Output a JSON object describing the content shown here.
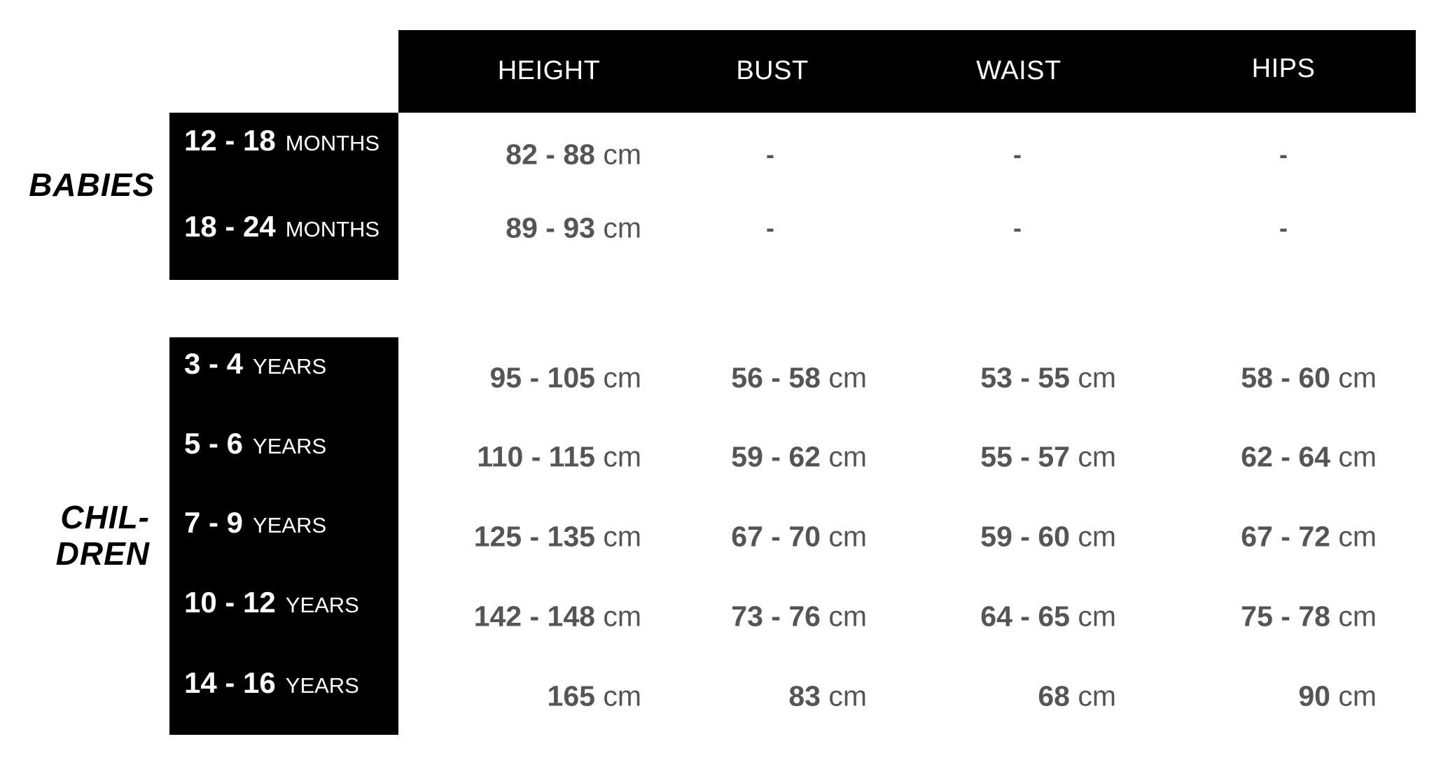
{
  "columns": [
    "HEIGHT",
    "BUST",
    "WAIST",
    "HIPS"
  ],
  "groups": {
    "babies": {
      "label": "BABIES",
      "rows": [
        {
          "range": "12 - 18",
          "unit": "MONTHS",
          "values": [
            {
              "num": "82 - 88",
              "unit": "cm"
            },
            "-",
            "-",
            "-"
          ]
        },
        {
          "range": "18 - 24",
          "unit": "MONTHS",
          "values": [
            {
              "num": "89 - 93",
              "unit": "cm"
            },
            "-",
            "-",
            "-"
          ]
        }
      ]
    },
    "children": {
      "label_line1": "CHIL-",
      "label_line2": "DREN",
      "rows": [
        {
          "range": "3 - 4",
          "unit": "YEARS",
          "values": [
            {
              "num": "95 - 105",
              "unit": "cm"
            },
            {
              "num": "56 - 58",
              "unit": "cm"
            },
            {
              "num": "53 - 55",
              "unit": "cm"
            },
            {
              "num": "58 - 60",
              "unit": "cm"
            }
          ]
        },
        {
          "range": "5 - 6",
          "unit": "YEARS",
          "values": [
            {
              "num": "110 - 115",
              "unit": "cm"
            },
            {
              "num": "59 - 62",
              "unit": "cm"
            },
            {
              "num": "55 - 57",
              "unit": "cm"
            },
            {
              "num": "62 - 64",
              "unit": "cm"
            }
          ]
        },
        {
          "range": "7 - 9",
          "unit": "YEARS",
          "values": [
            {
              "num": "125 - 135",
              "unit": "cm"
            },
            {
              "num": "67 - 70",
              "unit": "cm"
            },
            {
              "num": "59 - 60",
              "unit": "cm"
            },
            {
              "num": "67 - 72",
              "unit": "cm"
            }
          ]
        },
        {
          "range": "10 - 12",
          "unit": "YEARS",
          "values": [
            {
              "num": "142 - 148",
              "unit": "cm"
            },
            {
              "num": "73 - 76",
              "unit": "cm"
            },
            {
              "num": "64 - 65",
              "unit": "cm"
            },
            {
              "num": "75 - 78",
              "unit": "cm"
            }
          ]
        },
        {
          "range": "14 - 16",
          "unit": "YEARS",
          "values": [
            {
              "num": "165",
              "unit": "cm"
            },
            {
              "num": "83",
              "unit": "cm"
            },
            {
              "num": "68",
              "unit": "cm"
            },
            {
              "num": "90",
              "unit": "cm"
            }
          ]
        }
      ]
    }
  },
  "colors": {
    "header_bg": "#000000",
    "value_text": "#555555"
  }
}
